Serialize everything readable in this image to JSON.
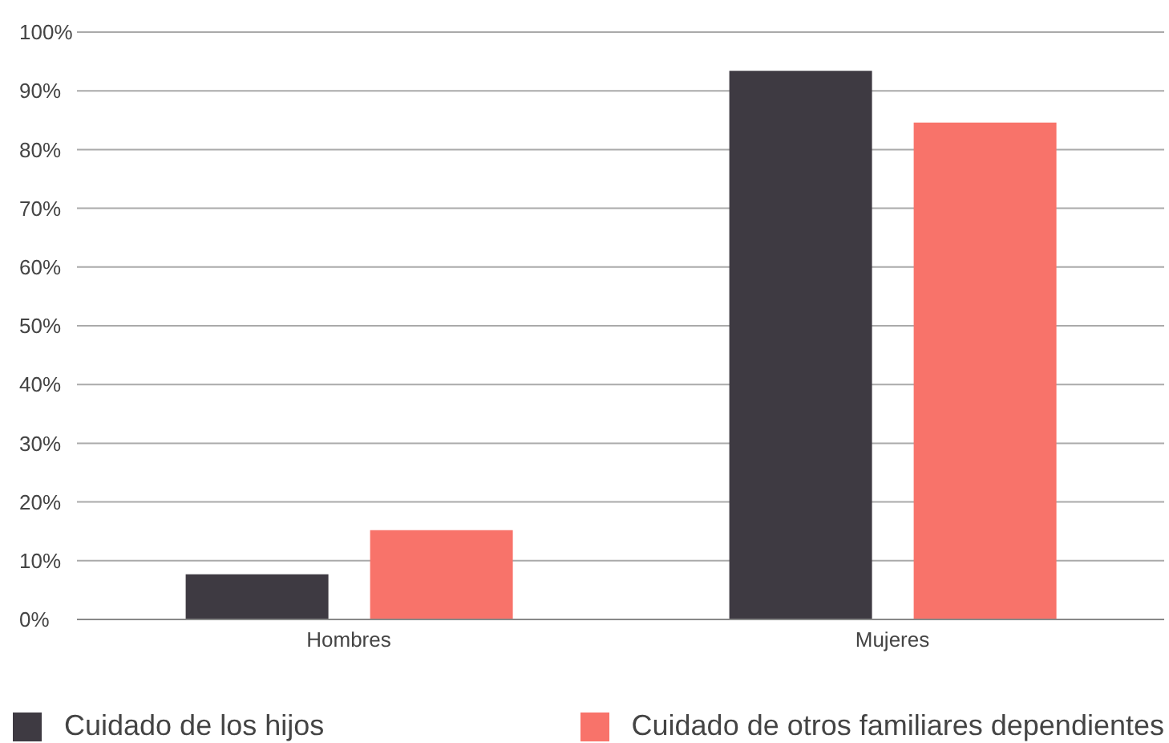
{
  "chart_data": {
    "type": "bar",
    "categories": [
      "Hombres",
      "Mujeres"
    ],
    "series": [
      {
        "name": "Cuidado de los hijos",
        "color": "#3e3a42",
        "values": [
          7.7,
          93.4
        ]
      },
      {
        "name": "Cuidado de otros familiares dependientes",
        "color": "#f8736a",
        "values": [
          15.2,
          84.6
        ]
      }
    ],
    "ylim": [
      0,
      100
    ],
    "yticks": [
      {
        "value": 0,
        "label": "0%"
      },
      {
        "value": 10,
        "label": "10%"
      },
      {
        "value": 20,
        "label": "20%"
      },
      {
        "value": 30,
        "label": "30%"
      },
      {
        "value": 40,
        "label": "40%"
      },
      {
        "value": 50,
        "label": "50%"
      },
      {
        "value": 60,
        "label": "60%"
      },
      {
        "value": 70,
        "label": "70%"
      },
      {
        "value": 80,
        "label": "80%"
      },
      {
        "value": 90,
        "label": "90%"
      },
      {
        "value": 100,
        "label": "100%"
      }
    ],
    "grid": "y",
    "legend": "bottom"
  }
}
